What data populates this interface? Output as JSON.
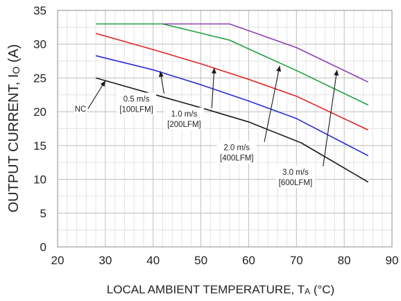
{
  "chart_data": {
    "type": "line",
    "xlabel_main": "LOCAL AMBIENT TEMPERATURE, T",
    "xlabel_sub": "A",
    "xlabel_unit": " (°C)",
    "ylabel_main": "OUTPUT CURRENT, I",
    "ylabel_sub": "O",
    "ylabel_unit": " (A)",
    "xlim": [
      20,
      90
    ],
    "ylim": [
      0,
      35
    ],
    "xticks": [
      20,
      30,
      40,
      50,
      60,
      70,
      80,
      90
    ],
    "yticks": [
      0,
      5,
      10,
      15,
      20,
      25,
      30,
      35
    ],
    "grid": true,
    "series": [
      {
        "name": "NC",
        "color": "#1a1a1a",
        "x": [
          28,
          40,
          50,
          60,
          71,
          85
        ],
        "y": [
          25.0,
          22.6,
          20.6,
          18.5,
          15.4,
          9.6
        ]
      },
      {
        "name": "0.5 m/s [100LFM]",
        "color": "#2b2bd6",
        "x": [
          28,
          40,
          50,
          60,
          70,
          85
        ],
        "y": [
          28.3,
          26.2,
          24.0,
          21.6,
          19.0,
          13.5
        ]
      },
      {
        "name": "1.0 m/s [200LFM]",
        "color": "#e02020",
        "x": [
          28,
          40,
          50,
          60,
          70,
          85
        ],
        "y": [
          31.6,
          29.2,
          27.1,
          24.8,
          22.3,
          17.3
        ]
      },
      {
        "name": "2.0 m/s [400LFM]",
        "color": "#20a040",
        "x": [
          28,
          42,
          56,
          60,
          70,
          85
        ],
        "y": [
          33.0,
          33.0,
          30.6,
          29.3,
          26.1,
          21.0
        ]
      },
      {
        "name": "3.0 m/s [600LFM]",
        "color": "#8a3fb0",
        "x": [
          42,
          56,
          70,
          85
        ],
        "y": [
          33.0,
          33.0,
          29.5,
          24.4
        ]
      }
    ],
    "annotations": [
      {
        "lines": [
          "NC"
        ],
        "x": 24.8,
        "y": 20.0,
        "tx": 30.0,
        "ty": 24.6
      },
      {
        "lines": [
          "0.5 m/s",
          "[100LFM]"
        ],
        "x": 36.5,
        "y": 21.5,
        "tx": 41.5,
        "ty": 26.0
      },
      {
        "lines": [
          "1.0 m/s",
          "[200LFM]"
        ],
        "x": 46.5,
        "y": 19.3,
        "tx": 52.8,
        "ty": 26.5
      },
      {
        "lines": [
          "2.0 m/s",
          "[400LFM]"
        ],
        "x": 57.5,
        "y": 14.3,
        "tx": 66.5,
        "ty": 26.8
      },
      {
        "lines": [
          "3.0 m/s",
          "[600LFM]"
        ],
        "x": 69.8,
        "y": 10.7,
        "tx": 78.5,
        "ty": 26.2
      }
    ]
  }
}
